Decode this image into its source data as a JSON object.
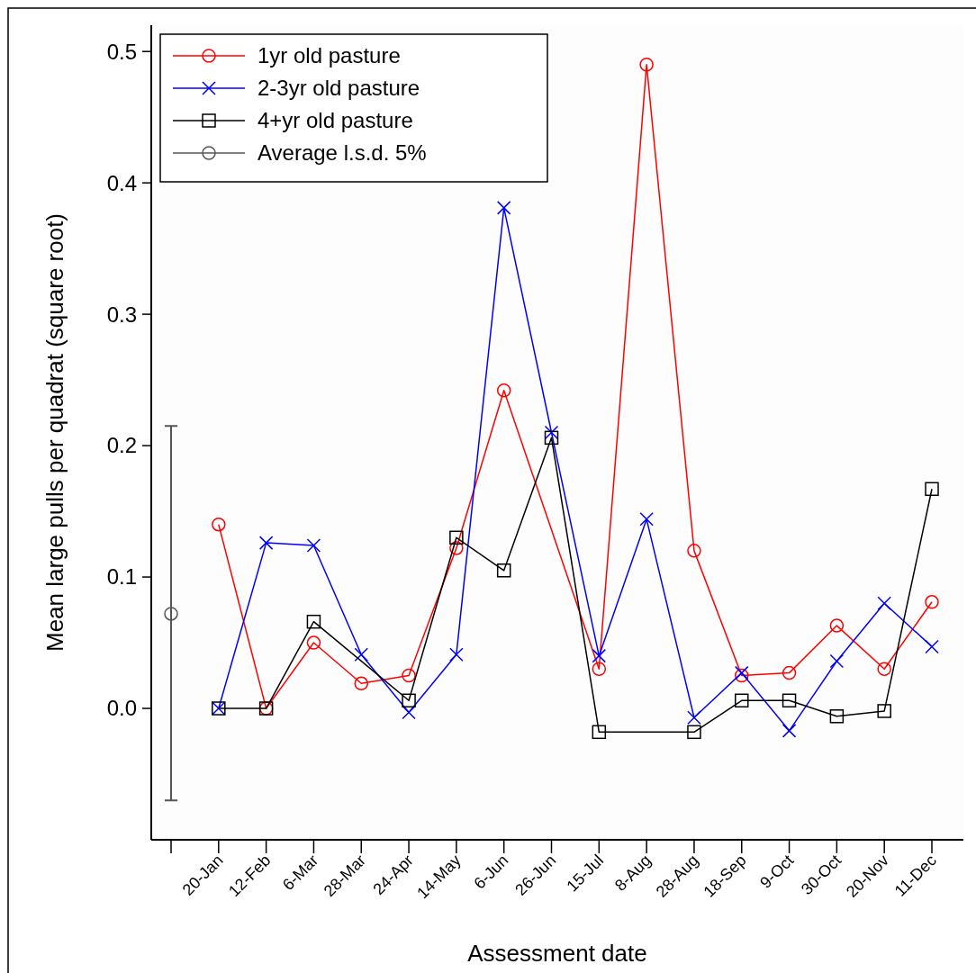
{
  "chart_data": {
    "type": "line",
    "xlabel": "Assessment date",
    "ylabel": "Mean large pulls per quadrat (square root)",
    "categories": [
      null,
      "20-Jan",
      "12-Feb",
      "6-Mar",
      "28-Mar",
      "24-Apr",
      "14-May",
      "6-Jun",
      "26-Jun",
      "15-Jul",
      "8-Aug",
      "28-Aug",
      "18-Sep",
      "9-Oct",
      "30-Oct",
      "20-Nov",
      "11-Dec"
    ],
    "series": [
      {
        "name": "1yr old pasture",
        "color": "#ff0000",
        "marker": "circle",
        "values": [
          null,
          0.14,
          0.0,
          0.05,
          0.019,
          0.025,
          0.122,
          0.242,
          null,
          0.03,
          0.49,
          0.12,
          0.025,
          0.027,
          0.063,
          0.03,
          0.081
        ]
      },
      {
        "name": "2-3yr old pasture",
        "color": "#0000ff",
        "marker": "cross",
        "values": [
          null,
          0.0,
          0.126,
          0.124,
          0.041,
          -0.003,
          0.041,
          0.381,
          0.21,
          0.04,
          0.144,
          -0.007,
          0.027,
          -0.017,
          0.036,
          0.08,
          0.047
        ]
      },
      {
        "name": "4+yr old pasture",
        "color": "#000000",
        "marker": "square",
        "values": [
          null,
          0.0,
          0.0,
          0.066,
          null,
          0.006,
          0.13,
          0.105,
          0.206,
          -0.018,
          null,
          -0.018,
          0.006,
          0.006,
          -0.006,
          -0.002,
          0.167
        ]
      },
      {
        "name": "Average l.s.d. 5%",
        "color": "#555555",
        "marker": "circle",
        "values": [
          0.072,
          null,
          null,
          null,
          null,
          null,
          null,
          null,
          null,
          null,
          null,
          null,
          null,
          null,
          null,
          null,
          null
        ],
        "errors": [
          [
            -0.07,
            0.215
          ],
          null,
          null,
          null,
          null,
          null,
          null,
          null,
          null,
          null,
          null,
          null,
          null,
          null,
          null,
          null,
          null
        ]
      }
    ],
    "ylim": [
      -0.1,
      0.52
    ],
    "yticks": [
      {
        "value": 0,
        "label": "0.0"
      },
      {
        "value": 0.1,
        "label": "0.1"
      },
      {
        "value": 0.2,
        "label": "0.2"
      },
      {
        "value": 0.3,
        "label": "0.3"
      },
      {
        "value": 0.4,
        "label": "0.4"
      },
      {
        "value": 0.5,
        "label": "0.5"
      }
    ],
    "legend": "top left"
  }
}
